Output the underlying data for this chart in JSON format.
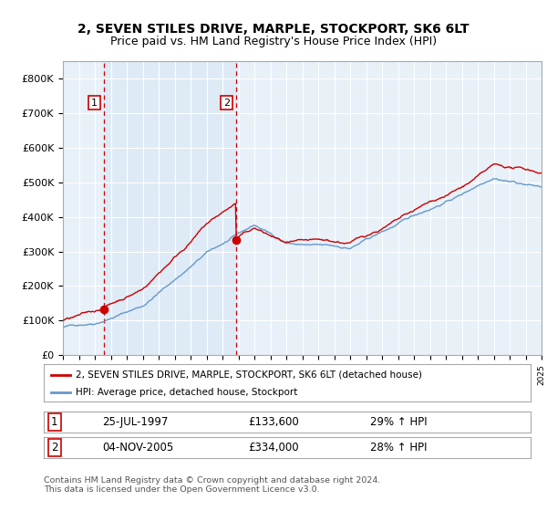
{
  "title": "2, SEVEN STILES DRIVE, MARPLE, STOCKPORT, SK6 6LT",
  "subtitle": "Price paid vs. HM Land Registry's House Price Index (HPI)",
  "ylim": [
    0,
    850000
  ],
  "yticks": [
    0,
    100000,
    200000,
    300000,
    400000,
    500000,
    600000,
    700000,
    800000
  ],
  "ytick_labels": [
    "£0",
    "£100K",
    "£200K",
    "£300K",
    "£400K",
    "£500K",
    "£600K",
    "£700K",
    "£800K"
  ],
  "sale1_date": 1997.57,
  "sale1_price": 133600,
  "sale2_date": 2005.84,
  "sale2_price": 334000,
  "legend_line1": "2, SEVEN STILES DRIVE, MARPLE, STOCKPORT, SK6 6LT (detached house)",
  "legend_line2": "HPI: Average price, detached house, Stockport",
  "table_row1": [
    "1",
    "25-JUL-1997",
    "£133,600",
    "29% ↑ HPI"
  ],
  "table_row2": [
    "2",
    "04-NOV-2005",
    "£334,000",
    "28% ↑ HPI"
  ],
  "footer": "Contains HM Land Registry data © Crown copyright and database right 2024.\nThis data is licensed under the Open Government Licence v3.0.",
  "line_color_red": "#cc0000",
  "line_color_blue": "#6699cc",
  "fill_color": "#dce9f5",
  "plot_bg": "#e8f0f8",
  "grid_color": "#ffffff",
  "title_fontsize": 10,
  "subtitle_fontsize": 9
}
